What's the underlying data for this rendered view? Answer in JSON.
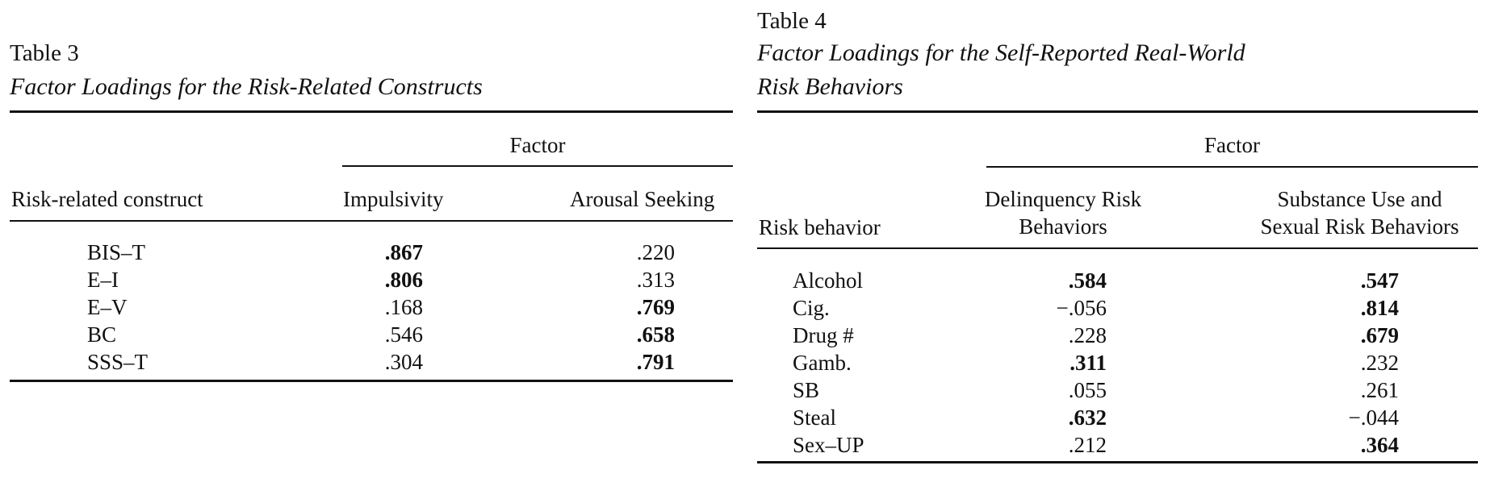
{
  "table3": {
    "label": "Table 3",
    "title": "Factor Loadings for the Risk-Related Constructs",
    "spanner": "Factor",
    "row_header": "Risk-related construct",
    "columns": [
      "Impulsivity",
      "Arousal Seeking"
    ],
    "rows": [
      {
        "label": "BIS–T",
        "values": [
          ".867",
          ".220"
        ],
        "bold": [
          true,
          false
        ]
      },
      {
        "label": "E–I",
        "values": [
          ".806",
          ".313"
        ],
        "bold": [
          true,
          false
        ]
      },
      {
        "label": "E–V",
        "values": [
          ".168",
          ".769"
        ],
        "bold": [
          false,
          true
        ]
      },
      {
        "label": "BC",
        "values": [
          ".546",
          ".658"
        ],
        "bold": [
          false,
          true
        ]
      },
      {
        "label": "SSS–T",
        "values": [
          ".304",
          ".791"
        ],
        "bold": [
          false,
          true
        ]
      }
    ]
  },
  "table4": {
    "label": "Table 4",
    "title_line1": "Factor Loadings for the Self-Reported Real-World",
    "title_line2": "Risk Behaviors",
    "spanner": "Factor",
    "row_header": "Risk behavior",
    "col1_line1": "Delinquency Risk",
    "col1_line2": "Behaviors",
    "col2_line1": "Substance Use and",
    "col2_line2": "Sexual Risk Behaviors",
    "rows": [
      {
        "label": "Alcohol",
        "values": [
          ".584",
          ".547"
        ],
        "bold": [
          true,
          true
        ]
      },
      {
        "label": "Cig.",
        "values": [
          "−.056",
          ".814"
        ],
        "bold": [
          false,
          true
        ]
      },
      {
        "label": "Drug #",
        "values": [
          ".228",
          ".679"
        ],
        "bold": [
          false,
          true
        ]
      },
      {
        "label": "Gamb.",
        "values": [
          ".311",
          ".232"
        ],
        "bold": [
          true,
          false
        ]
      },
      {
        "label": "SB",
        "values": [
          ".055",
          ".261"
        ],
        "bold": [
          false,
          false
        ]
      },
      {
        "label": "Steal",
        "values": [
          ".632",
          "−.044"
        ],
        "bold": [
          true,
          false
        ]
      },
      {
        "label": "Sex–UP",
        "values": [
          ".212",
          ".364"
        ],
        "bold": [
          false,
          true
        ]
      }
    ]
  }
}
